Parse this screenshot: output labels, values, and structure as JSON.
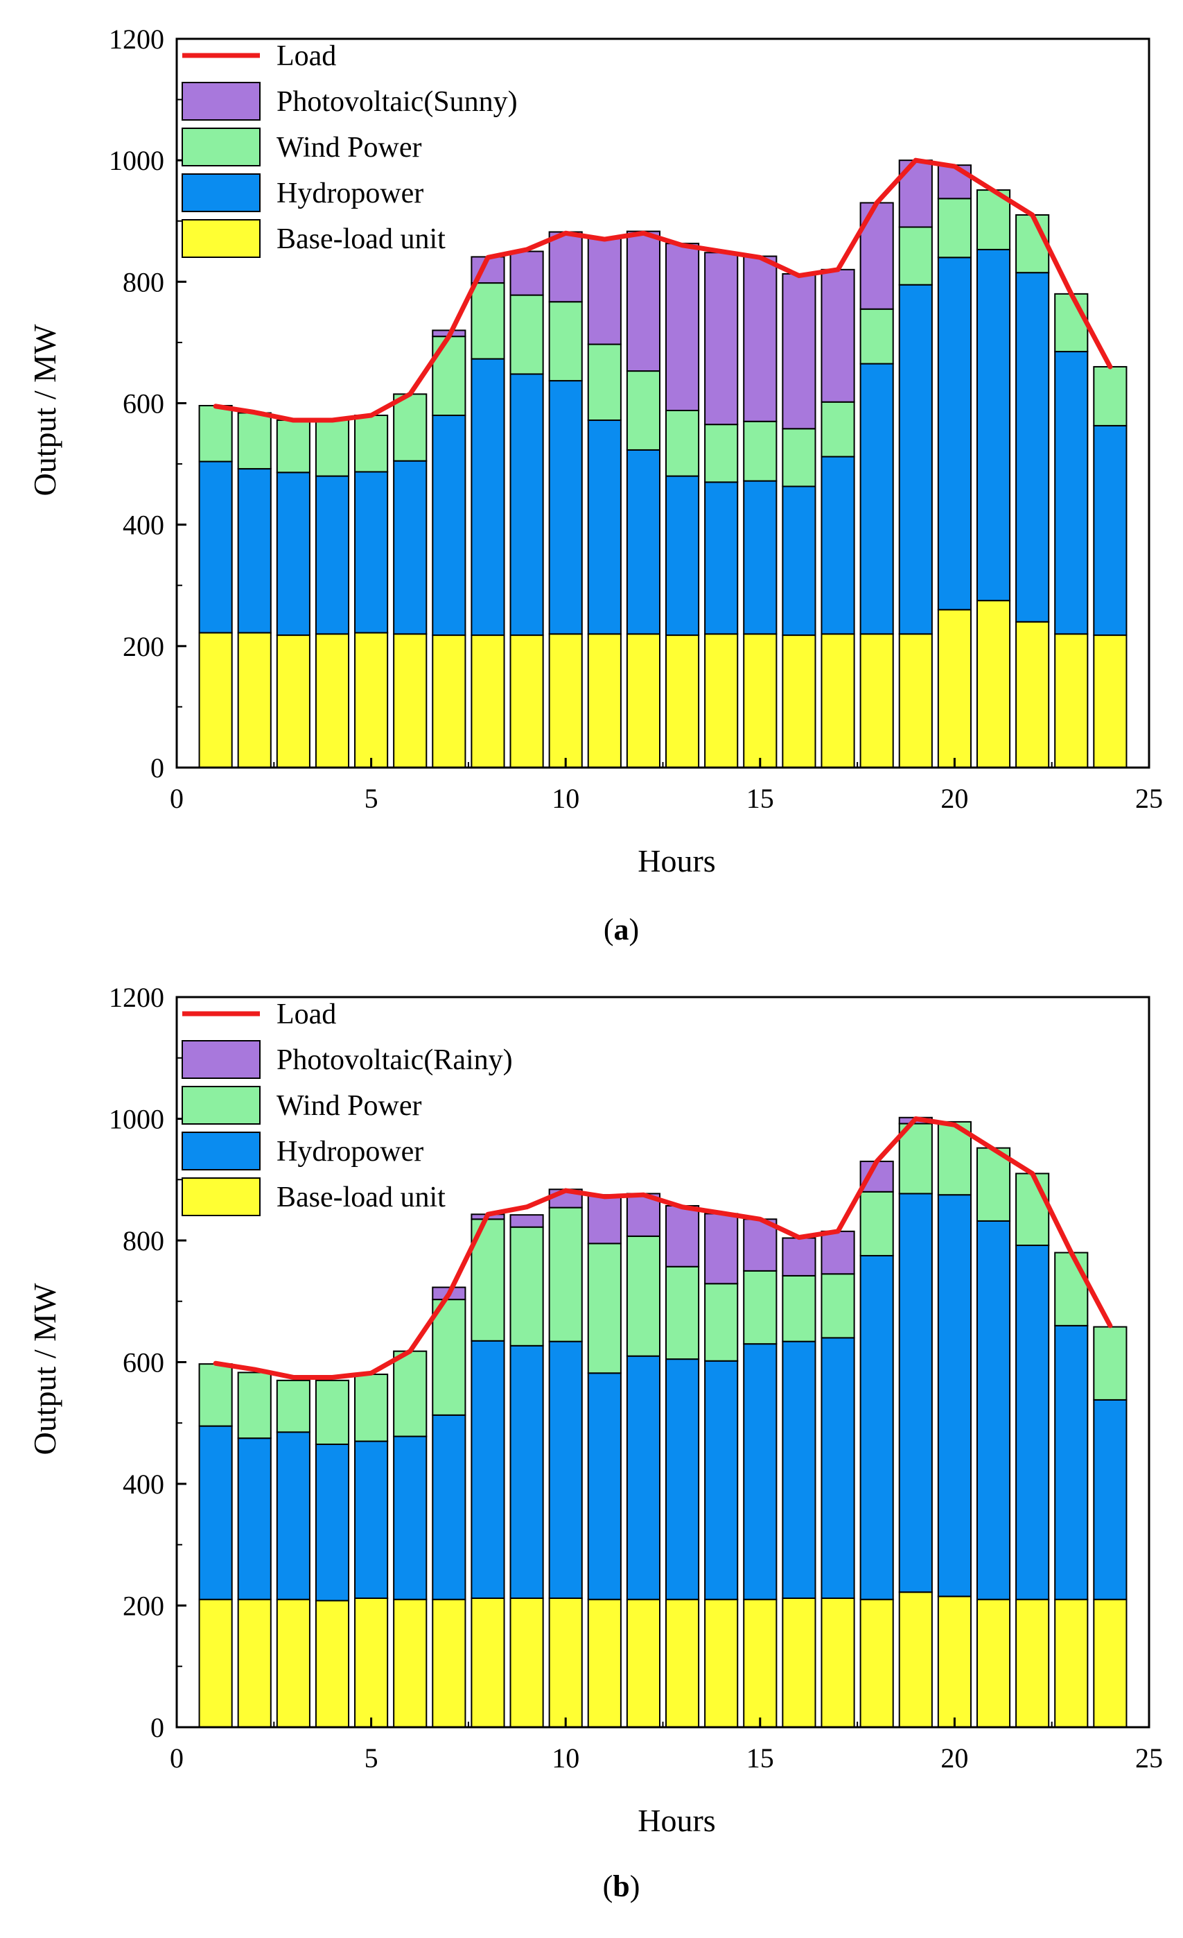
{
  "colors": {
    "base": "#FFFF33",
    "hydro": "#0A8CF0",
    "wind": "#8CF0A0",
    "pv": "#A878DC",
    "load": "#EE1C1C"
  },
  "chart_data": [
    {
      "type": "bar",
      "stacked": true,
      "caption": "(a)",
      "caption_letter": "a",
      "xlabel": "Hours",
      "ylabel": "Output / MW",
      "xlim": [
        0,
        25
      ],
      "ylim": [
        0,
        1200
      ],
      "xticks": [
        0,
        5,
        10,
        15,
        20,
        25
      ],
      "yticks": [
        0,
        200,
        400,
        600,
        800,
        1000,
        1200
      ],
      "grid": false,
      "legend_position": "top-left",
      "x": [
        1,
        2,
        3,
        4,
        5,
        6,
        7,
        8,
        9,
        10,
        11,
        12,
        13,
        14,
        15,
        16,
        17,
        18,
        19,
        20,
        21,
        22,
        23,
        24
      ],
      "series": [
        {
          "name": "Base-load unit",
          "color_key": "base",
          "values": [
            222,
            222,
            218,
            220,
            222,
            220,
            218,
            218,
            218,
            220,
            220,
            220,
            218,
            220,
            220,
            218,
            220,
            220,
            220,
            260,
            275,
            240,
            220,
            218
          ]
        },
        {
          "name": "Hydropower",
          "color_key": "hydro",
          "values": [
            282,
            270,
            268,
            260,
            265,
            285,
            362,
            455,
            430,
            417,
            352,
            303,
            262,
            250,
            252,
            245,
            292,
            445,
            575,
            580,
            578,
            575,
            465,
            345
          ]
        },
        {
          "name": "Wind Power",
          "color_key": "wind",
          "values": [
            92,
            92,
            86,
            93,
            93,
            110,
            130,
            125,
            130,
            130,
            125,
            130,
            108,
            95,
            98,
            95,
            90,
            90,
            95,
            97,
            98,
            95,
            95,
            97
          ]
        },
        {
          "name": "Photovoltaic(Sunny)",
          "color_key": "pv",
          "values": [
            0,
            0,
            0,
            0,
            0,
            0,
            10,
            43,
            72,
            115,
            175,
            230,
            275,
            283,
            272,
            255,
            218,
            175,
            110,
            55,
            0,
            0,
            0,
            0
          ]
        }
      ],
      "line": {
        "name": "Load",
        "color_key": "load",
        "values": [
          595,
          585,
          572,
          572,
          580,
          615,
          710,
          840,
          853,
          880,
          870,
          880,
          860,
          850,
          840,
          810,
          820,
          930,
          1000,
          990,
          950,
          910,
          780,
          660
        ]
      }
    },
    {
      "type": "bar",
      "stacked": true,
      "caption": "(b)",
      "caption_letter": "b",
      "xlabel": "Hours",
      "ylabel": "Output / MW",
      "xlim": [
        0,
        25
      ],
      "ylim": [
        0,
        1200
      ],
      "xticks": [
        0,
        5,
        10,
        15,
        20,
        25
      ],
      "yticks": [
        0,
        200,
        400,
        600,
        800,
        1000,
        1200
      ],
      "grid": false,
      "legend_position": "top-left",
      "x": [
        1,
        2,
        3,
        4,
        5,
        6,
        7,
        8,
        9,
        10,
        11,
        12,
        13,
        14,
        15,
        16,
        17,
        18,
        19,
        20,
        21,
        22,
        23,
        24
      ],
      "series": [
        {
          "name": "Base-load unit",
          "color_key": "base",
          "values": [
            210,
            210,
            210,
            208,
            212,
            210,
            210,
            212,
            212,
            212,
            210,
            210,
            210,
            210,
            210,
            212,
            212,
            210,
            222,
            215,
            210,
            210,
            210,
            210
          ]
        },
        {
          "name": "Hydropower",
          "color_key": "hydro",
          "values": [
            285,
            265,
            275,
            257,
            258,
            268,
            303,
            423,
            415,
            422,
            372,
            400,
            395,
            392,
            420,
            422,
            428,
            565,
            655,
            660,
            622,
            582,
            450,
            328
          ]
        },
        {
          "name": "Wind Power",
          "color_key": "wind",
          "values": [
            102,
            108,
            85,
            105,
            110,
            140,
            190,
            200,
            195,
            220,
            213,
            197,
            152,
            127,
            120,
            108,
            105,
            105,
            115,
            120,
            120,
            118,
            120,
            120
          ]
        },
        {
          "name": "Photovoltaic(Rainy)",
          "color_key": "pv",
          "values": [
            0,
            0,
            0,
            0,
            0,
            0,
            20,
            8,
            20,
            30,
            80,
            70,
            100,
            115,
            85,
            62,
            70,
            50,
            10,
            0,
            0,
            0,
            0,
            0
          ]
        }
      ],
      "line": {
        "name": "Load",
        "color_key": "load",
        "values": [
          598,
          588,
          575,
          575,
          582,
          618,
          712,
          843,
          855,
          882,
          872,
          875,
          855,
          845,
          835,
          805,
          815,
          930,
          1000,
          990,
          950,
          910,
          780,
          660
        ]
      }
    }
  ]
}
